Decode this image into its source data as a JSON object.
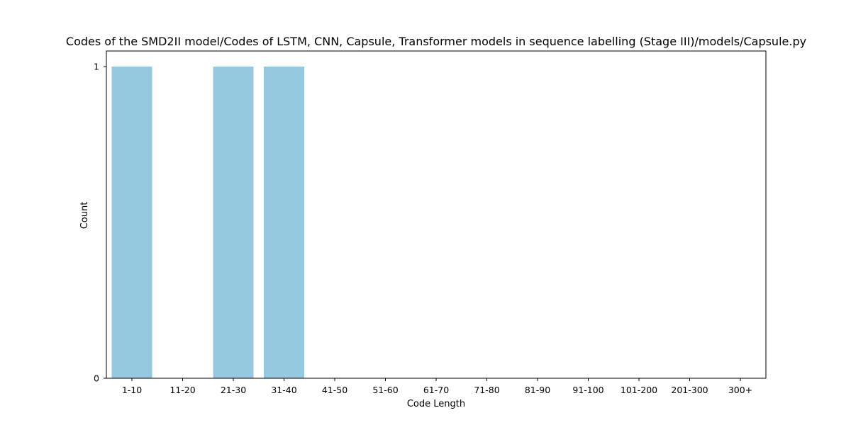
{
  "chart_data": {
    "type": "bar",
    "title": "Codes of the SMD2II model/Codes of LSTM, CNN, Capsule, Transformer models in sequence labelling (Stage III)/models/Capsule.py",
    "xlabel": "Code Length",
    "ylabel": "Count",
    "categories": [
      "1-10",
      "11-20",
      "21-30",
      "31-40",
      "41-50",
      "51-60",
      "61-70",
      "71-80",
      "81-90",
      "91-100",
      "101-200",
      "201-300",
      "300+"
    ],
    "values": [
      1,
      0,
      1,
      1,
      0,
      0,
      0,
      0,
      0,
      0,
      0,
      0,
      0
    ],
    "ylim": [
      0,
      1
    ],
    "yticks": [
      0,
      1
    ],
    "grid": false,
    "bar_color": "#96c9df",
    "axis_color": "#000000"
  }
}
